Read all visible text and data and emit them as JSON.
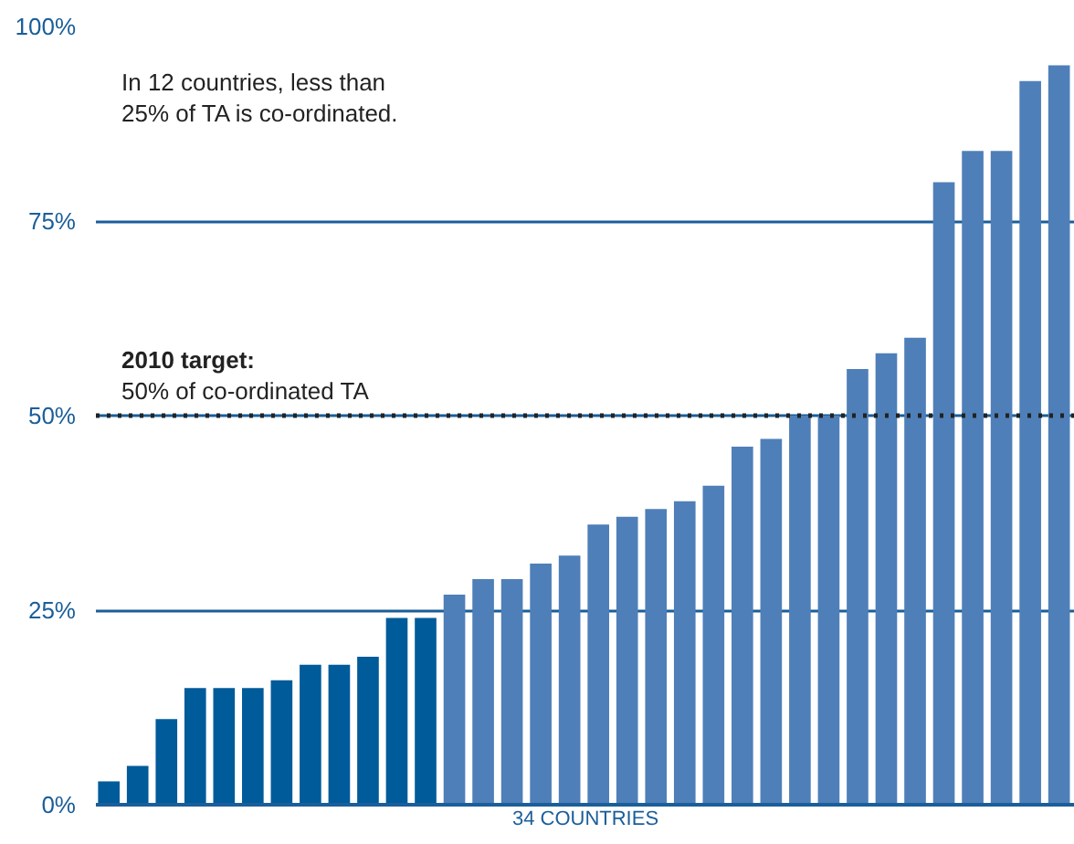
{
  "chart_data": {
    "type": "bar",
    "xlabel": "34 COUNTRIES",
    "categories": [
      null,
      null,
      null,
      null,
      null,
      null,
      null,
      null,
      null,
      null,
      null,
      null,
      null,
      null,
      null,
      null,
      null,
      null,
      null,
      null,
      null,
      null,
      null,
      null,
      null,
      null,
      null,
      null,
      null,
      null,
      null,
      null,
      null,
      null
    ],
    "values": [
      3,
      5,
      11,
      15,
      15,
      15,
      16,
      18,
      18,
      19,
      24,
      24,
      27,
      29,
      29,
      31,
      32,
      36,
      37,
      38,
      39,
      41,
      46,
      47,
      50,
      50,
      56,
      58,
      60,
      80,
      84,
      84,
      93,
      95
    ],
    "colors": [
      "#005b9a",
      "#005b9a",
      "#005b9a",
      "#005b9a",
      "#005b9a",
      "#005b9a",
      "#005b9a",
      "#005b9a",
      "#005b9a",
      "#005b9a",
      "#005b9a",
      "#005b9a",
      "#4f7fb8",
      "#4f7fb8",
      "#4f7fb8",
      "#4f7fb8",
      "#4f7fb8",
      "#4f7fb8",
      "#4f7fb8",
      "#4f7fb8",
      "#4f7fb8",
      "#4f7fb8",
      "#4f7fb8",
      "#4f7fb8",
      "#4f7fb8",
      "#4f7fb8",
      "#4f7fb8",
      "#4f7fb8",
      "#4f7fb8",
      "#4f7fb8",
      "#4f7fb8",
      "#4f7fb8",
      "#4f7fb8",
      "#4f7fb8"
    ],
    "ylim": [
      0,
      100
    ],
    "yticks": [
      {
        "value": 0,
        "label": "0%"
      },
      {
        "value": 25,
        "label": "25%"
      },
      {
        "value": 50,
        "label": "50%"
      },
      {
        "value": 75,
        "label": "75%"
      },
      {
        "value": 100,
        "label": "100%"
      }
    ],
    "grid": "y",
    "ref_lines": [
      {
        "axis": "y",
        "value": 50,
        "label": "2010 target:\n50% of co-ordinated TA",
        "color": "#222222",
        "line_style": "dotted"
      }
    ],
    "annotations": [
      "In 12 countries, less than\n25% of TA is co-ordinated."
    ]
  }
}
